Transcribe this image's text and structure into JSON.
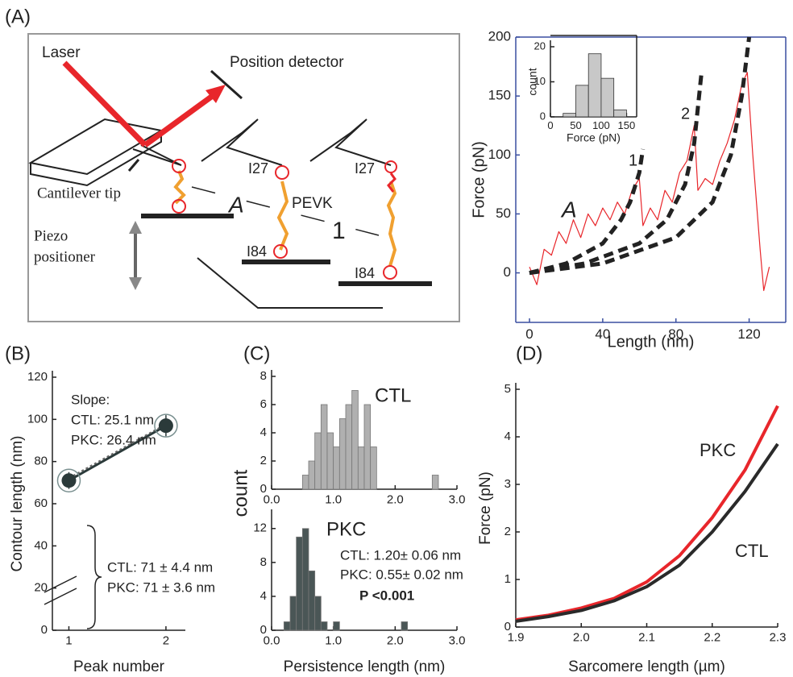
{
  "panel_labels": [
    "(A)",
    "(B)",
    "(C)",
    "(D)"
  ],
  "diagram": {
    "laser": "Laser",
    "detector": "Position detector",
    "tip": "Cantilever tip",
    "piezo": [
      "Piezo",
      "positioner"
    ],
    "state_a": "A",
    "state_1": "1",
    "pevk": "PEVK",
    "i27": [
      "I27",
      "I27"
    ],
    "i84": [
      "I84",
      "I84"
    ]
  },
  "chart_data": [
    {
      "type": "line",
      "xlabel": "Length (nm)",
      "ylabel": "Force (pN)",
      "axis_color": "#3a4fa0",
      "xlim": [
        -7.5,
        140
      ],
      "xticks": [
        0,
        40,
        80,
        120
      ],
      "ylim": [
        -42,
        200
      ],
      "yticks": [
        0,
        50,
        100,
        150,
        200
      ],
      "annotations": [
        "A",
        "1",
        "2"
      ],
      "series": [
        {
          "color": "#e8262b",
          "style": "solid",
          "x": [
            0,
            4,
            8,
            12,
            16,
            20,
            24,
            28,
            32,
            36,
            40,
            44,
            48,
            52,
            56,
            60,
            62,
            66,
            70,
            74,
            78,
            82,
            86,
            90,
            92,
            96,
            100,
            104,
            108,
            112,
            116,
            119,
            122,
            126,
            128,
            131
          ],
          "values": [
            5,
            -10,
            20,
            15,
            35,
            25,
            45,
            30,
            50,
            40,
            55,
            45,
            60,
            50,
            70,
            80,
            40,
            55,
            45,
            70,
            60,
            85,
            95,
            125,
            70,
            80,
            75,
            95,
            110,
            130,
            160,
            170,
            100,
            20,
            -15,
            5
          ]
        },
        {
          "color": "#222222",
          "style": "dashed",
          "x": [
            0,
            20,
            40,
            50,
            55,
            60,
            62
          ],
          "values": [
            0,
            8,
            25,
            45,
            60,
            85,
            105
          ]
        },
        {
          "color": "#222222",
          "style": "dashed",
          "x": [
            0,
            30,
            60,
            75,
            85,
            90,
            94
          ],
          "values": [
            0,
            8,
            25,
            45,
            75,
            110,
            170
          ]
        },
        {
          "color": "#222222",
          "style": "dashed",
          "x": [
            0,
            40,
            80,
            100,
            110,
            116,
            120
          ],
          "values": [
            0,
            8,
            30,
            60,
            100,
            150,
            200
          ]
        }
      ]
    },
    {
      "type": "histogram",
      "xlabel": "Force (pN)",
      "ylabel": "count",
      "color": "#c8c8c8",
      "bins": [
        25,
        50,
        75,
        100,
        125,
        150
      ],
      "values": [
        1,
        9,
        18,
        11,
        2
      ],
      "xlim": [
        0,
        170
      ],
      "xticks": [
        0,
        50,
        100,
        150
      ],
      "ylim": [
        0,
        20
      ],
      "yticks": [
        0,
        10,
        20
      ]
    },
    {
      "type": "errorbar",
      "xlabel": "Peak number",
      "ylabel": "Contour length (nm)",
      "color": "#2b3a3a",
      "x": [
        1,
        2
      ],
      "values": [
        71,
        97
      ],
      "errors": [
        4,
        5
      ],
      "xlim": [
        0.83,
        2.2
      ],
      "xticks": [
        1,
        2
      ],
      "ylim": [
        0,
        120
      ],
      "yticks": [
        0,
        20,
        40,
        60,
        80,
        100,
        120
      ],
      "annotations": [
        "Slope:",
        "CTL: 25.1 nm",
        "PKC: 26.4 nm",
        "CTL: 71 ± 4.4 nm",
        "PKC: 71 ± 3.6 nm"
      ]
    },
    {
      "type": "histogram",
      "title": "CTL",
      "ylabel": "count",
      "color": "#b0b0b0",
      "bins": [
        0.5,
        0.6,
        0.7,
        0.8,
        0.9,
        1.0,
        1.1,
        1.2,
        1.3,
        1.4,
        1.5,
        1.6,
        1.7,
        1.8,
        1.9,
        2.0,
        2.1,
        2.2,
        2.3,
        2.4,
        2.5,
        2.6,
        2.7
      ],
      "values": [
        1,
        2,
        4,
        6,
        4,
        3,
        5,
        6,
        7,
        3,
        6,
        3,
        0,
        0,
        0,
        0,
        0,
        0,
        0,
        0,
        0,
        1
      ],
      "xlim": [
        0,
        3
      ],
      "xticks": [
        {
          "value": 0,
          "label": "0.0"
        },
        {
          "value": 1,
          "label": "1.0"
        },
        {
          "value": 2,
          "label": "2.0"
        },
        {
          "value": 3,
          "label": "3.0"
        }
      ],
      "ylim": [
        0,
        8
      ],
      "yticks": [
        0,
        2,
        4,
        6,
        8
      ]
    },
    {
      "type": "histogram",
      "title": "PKC",
      "xlabel": "Persistence length (nm)",
      "color": "#4a5656",
      "bins": [
        0.2,
        0.3,
        0.4,
        0.5,
        0.6,
        0.7,
        0.8,
        0.9,
        1.0,
        1.1,
        1.2,
        1.3,
        1.4,
        1.5,
        1.6,
        1.7,
        1.8,
        1.9,
        2.0,
        2.1,
        2.2
      ],
      "values": [
        1,
        4,
        11,
        12,
        7,
        4,
        1,
        0,
        1,
        0,
        0,
        0,
        0,
        0,
        0,
        0,
        0,
        0,
        0,
        1
      ],
      "xlim": [
        0,
        3
      ],
      "xticks": [
        {
          "value": 0,
          "label": "0.0"
        },
        {
          "value": 1,
          "label": "1.0"
        },
        {
          "value": 2,
          "label": "2.0"
        },
        {
          "value": 3,
          "label": "3.0"
        }
      ],
      "ylim": [
        0,
        13.5
      ],
      "yticks": [
        0,
        4,
        8,
        12
      ],
      "annotations": [
        "CTL:  1.20± 0.06 nm",
        "PKC:  0.55± 0.02 nm",
        "P <0.001"
      ]
    },
    {
      "type": "line",
      "xlabel": "Sarcomere length (µm)",
      "ylabel": "Force (pN)",
      "axis_color": "#222222",
      "x": [
        1.9,
        1.95,
        2.0,
        2.05,
        2.1,
        2.15,
        2.2,
        2.25,
        2.3
      ],
      "xlim": [
        1.9,
        2.3
      ],
      "xticks": [
        1.9,
        {
          "value": 2.0,
          "label": "2.0"
        },
        2.1,
        2.2,
        2.3
      ],
      "ylim": [
        0,
        5
      ],
      "yticks": [
        0,
        1,
        2,
        3,
        4,
        5
      ],
      "series": [
        {
          "name": "PKC",
          "color": "#e8262b",
          "style": "solid",
          "values": [
            0.15,
            0.25,
            0.4,
            0.6,
            0.95,
            1.5,
            2.3,
            3.3,
            4.65
          ]
        },
        {
          "name": "CTL",
          "color": "#2a2a2a",
          "style": "solid",
          "values": [
            0.12,
            0.22,
            0.35,
            0.55,
            0.85,
            1.3,
            2.0,
            2.85,
            3.85
          ]
        }
      ]
    }
  ]
}
